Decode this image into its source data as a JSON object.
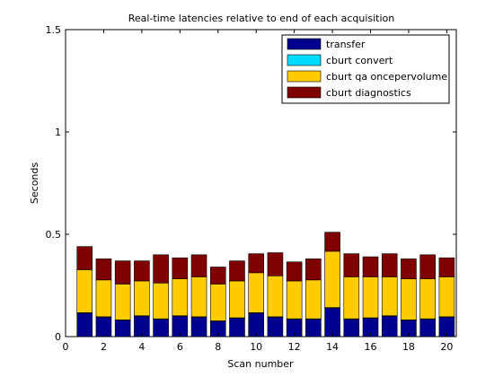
{
  "chart_data": {
    "type": "bar",
    "stacked": true,
    "title": "Real-time latencies relative to end of each acquisition",
    "xlabel": "Scan number",
    "ylabel": "Seconds",
    "xlim": [
      0,
      20.5
    ],
    "ylim": [
      0,
      1.5
    ],
    "x_ticks": [
      0,
      2,
      4,
      6,
      8,
      10,
      12,
      14,
      16,
      18,
      20
    ],
    "y_ticks": [
      0,
      0.5,
      1,
      1.5
    ],
    "y_tick_labels": [
      "0",
      "0.5",
      "1",
      "1.5"
    ],
    "grid": false,
    "legend_position": "top-right",
    "x": [
      1,
      2,
      3,
      4,
      5,
      6,
      7,
      8,
      9,
      10,
      11,
      12,
      13,
      14,
      15,
      16,
      17,
      18,
      19,
      20
    ],
    "series": [
      {
        "name": "transfer",
        "color": "#00008f",
        "values": [
          0.115,
          0.095,
          0.08,
          0.1,
          0.085,
          0.1,
          0.095,
          0.075,
          0.09,
          0.115,
          0.095,
          0.085,
          0.085,
          0.14,
          0.085,
          0.09,
          0.1,
          0.08,
          0.085,
          0.095
        ]
      },
      {
        "name": "cburt convert",
        "color": "#00dcff",
        "values": [
          0.002,
          0.002,
          0.002,
          0.002,
          0.002,
          0.002,
          0.002,
          0.002,
          0.002,
          0.002,
          0.002,
          0.002,
          0.002,
          0.002,
          0.002,
          0.002,
          0.002,
          0.002,
          0.002,
          0.002
        ]
      },
      {
        "name": "cburt qa oncepervolume",
        "color": "#ffcc00",
        "values": [
          0.21,
          0.18,
          0.175,
          0.17,
          0.175,
          0.18,
          0.195,
          0.18,
          0.18,
          0.195,
          0.2,
          0.185,
          0.19,
          0.275,
          0.205,
          0.2,
          0.19,
          0.2,
          0.195,
          0.195
        ]
      },
      {
        "name": "cburt diagnostics",
        "color": "#7f0000",
        "values": [
          0.113,
          0.103,
          0.113,
          0.098,
          0.138,
          0.103,
          0.108,
          0.083,
          0.098,
          0.093,
          0.113,
          0.093,
          0.103,
          0.093,
          0.113,
          0.098,
          0.113,
          0.098,
          0.118,
          0.093
        ]
      }
    ]
  }
}
